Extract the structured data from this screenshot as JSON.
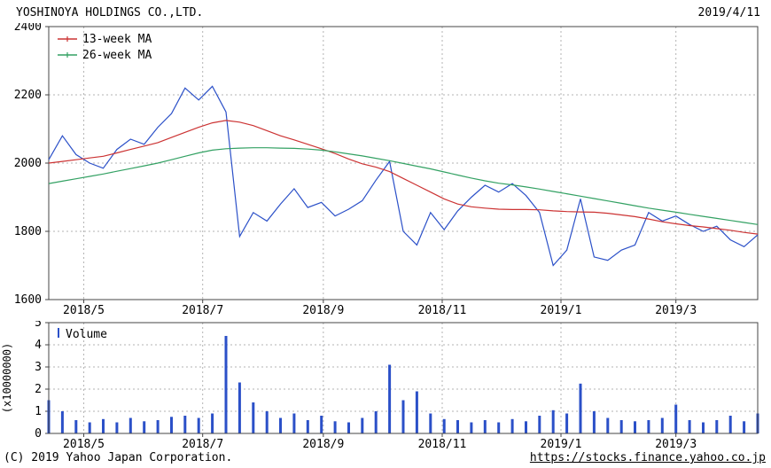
{
  "header": {
    "title": "YOSHINOYA HOLDINGS CO.,LTD.",
    "date": "2019/4/11"
  },
  "footer": {
    "copyright": "(C) 2019 Yahoo Japan Corporation.",
    "url": "https://stocks.finance.yahoo.co.jp"
  },
  "colors": {
    "price": "#2b50c8",
    "ma13": "#cc3333",
    "ma26": "#33a163",
    "grid": "#b3b3b3",
    "border": "#444444"
  },
  "chart_data": {
    "x_range": [
      0,
      52
    ],
    "x_ticks": [
      {
        "label": "2018/5",
        "pos": 2.57
      },
      {
        "label": "2018/7",
        "pos": 11.29
      },
      {
        "label": "2018/9",
        "pos": 20.14
      },
      {
        "label": "2018/11",
        "pos": 28.86
      },
      {
        "label": "2019/1",
        "pos": 37.57
      },
      {
        "label": "2019/3",
        "pos": 46.0
      }
    ],
    "price_chart": {
      "type": "line",
      "y_range": [
        1600,
        2400
      ],
      "y_ticks": [
        1600,
        1800,
        2000,
        2200,
        2400
      ],
      "legend": [
        {
          "label": "13-week MA",
          "color": "#cc3333"
        },
        {
          "label": "26-week MA",
          "color": "#33a163"
        }
      ],
      "series": [
        {
          "id": "price-line",
          "color": "#2b50c8",
          "values": [
            2010,
            2080,
            2025,
            2000,
            1985,
            2040,
            2070,
            2055,
            2105,
            2145,
            2220,
            2185,
            2225,
            2150,
            1785,
            1855,
            1830,
            1880,
            1925,
            1870,
            1885,
            1845,
            1865,
            1890,
            1950,
            2005,
            1800,
            1760,
            1855,
            1805,
            1860,
            1900,
            1935,
            1915,
            1940,
            1905,
            1855,
            1700,
            1745,
            1895,
            1725,
            1715,
            1745,
            1760,
            1855,
            1830,
            1845,
            1820,
            1800,
            1815,
            1775,
            1755,
            1790
          ]
        },
        {
          "id": "ma13-line",
          "color": "#cc3333",
          "values": [
            2000,
            2005,
            2010,
            2015,
            2020,
            2030,
            2040,
            2050,
            2060,
            2075,
            2090,
            2105,
            2118,
            2125,
            2120,
            2110,
            2095,
            2080,
            2068,
            2055,
            2042,
            2028,
            2012,
            1998,
            1988,
            1975,
            1955,
            1935,
            1915,
            1895,
            1880,
            1872,
            1868,
            1865,
            1864,
            1864,
            1863,
            1860,
            1858,
            1857,
            1856,
            1853,
            1848,
            1843,
            1836,
            1828,
            1822,
            1817,
            1813,
            1808,
            1803,
            1797,
            1792
          ]
        },
        {
          "id": "ma26-line",
          "color": "#33a163",
          "values": [
            1940,
            1947,
            1954,
            1961,
            1968,
            1976,
            1984,
            1992,
            2000,
            2010,
            2020,
            2030,
            2038,
            2042,
            2044,
            2045,
            2045,
            2044,
            2043,
            2041,
            2038,
            2033,
            2027,
            2021,
            2014,
            2007,
            1999,
            1991,
            1983,
            1974,
            1965,
            1956,
            1948,
            1941,
            1936,
            1930,
            1924,
            1917,
            1910,
            1903,
            1896,
            1889,
            1882,
            1875,
            1868,
            1862,
            1856,
            1850,
            1844,
            1838,
            1832,
            1826,
            1820
          ]
        }
      ]
    },
    "volume_chart": {
      "type": "bar",
      "legend_label": "Volume",
      "y_axis_label": "(x10000000)",
      "y_range": [
        0,
        5
      ],
      "y_ticks": [
        0,
        1,
        2,
        3,
        4,
        5
      ],
      "color": "#2b50c8",
      "values": [
        1.5,
        1.0,
        0.6,
        0.5,
        0.65,
        0.5,
        0.7,
        0.55,
        0.6,
        0.75,
        0.8,
        0.7,
        0.9,
        4.4,
        2.3,
        1.4,
        1.0,
        0.7,
        0.9,
        0.6,
        0.8,
        0.55,
        0.5,
        0.7,
        1.0,
        3.1,
        1.5,
        1.9,
        0.9,
        0.65,
        0.6,
        0.5,
        0.6,
        0.5,
        0.65,
        0.55,
        0.8,
        1.05,
        0.9,
        2.25,
        1.0,
        0.7,
        0.6,
        0.55,
        0.6,
        0.7,
        1.3,
        0.6,
        0.5,
        0.6,
        0.8,
        0.55,
        0.9
      ]
    }
  }
}
